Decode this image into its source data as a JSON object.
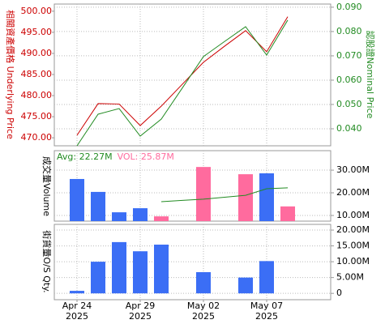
{
  "chart_data": [
    {
      "type": "line",
      "ylabel": "相關資產價格 Underlying Price",
      "y2label": "認股證Nominal Price",
      "ylim": [
        468.1,
        501.7
      ],
      "yticks": [
        {
          "value": 470,
          "label": "470.00"
        },
        {
          "value": 475,
          "label": "475.00"
        },
        {
          "value": 480,
          "label": "480.00"
        },
        {
          "value": 485,
          "label": "485.00"
        },
        {
          "value": 490,
          "label": "490.00"
        },
        {
          "value": 495,
          "label": "495.00"
        },
        {
          "value": 500,
          "label": "500.00"
        }
      ],
      "y2lim": [
        0.033,
        0.0913
      ],
      "y2ticks": [
        {
          "value": 0.04,
          "label": "0.040"
        },
        {
          "value": 0.05,
          "label": "0.050"
        },
        {
          "value": 0.06,
          "label": "0.060"
        },
        {
          "value": 0.07,
          "label": "0.070"
        },
        {
          "value": 0.08,
          "label": "0.080"
        },
        {
          "value": 0.09,
          "label": "0.090"
        }
      ],
      "grid": true,
      "series": [
        {
          "name": "Underlying Price",
          "color": "#cc0000",
          "values": [
            470.6,
            478.1,
            478.0,
            472.9,
            477.5,
            482.7,
            487.9,
            491.7,
            495.4,
            490.4,
            498.7
          ]
        },
        {
          "name": "Nominal Price",
          "color": "#228b22",
          "axis": "y2",
          "values": [
            0.033,
            0.046,
            0.0483,
            0.037,
            0.044,
            0.0568,
            0.0697,
            0.0759,
            0.082,
            0.0703,
            0.0847
          ]
        }
      ]
    },
    {
      "type": "bar",
      "ylabel": "成交量Volume",
      "annotations": [
        {
          "text": "Avg: 22.27M",
          "color": "#228b22"
        },
        {
          "text": "VOL: 25.87M",
          "color": "#ff6b9e"
        }
      ],
      "ylim": [
        7500000,
        38600000
      ],
      "y2ticks": [
        {
          "value": 10000000,
          "label": "10.00M"
        },
        {
          "value": 20000000,
          "label": "20.00M"
        },
        {
          "value": 30000000,
          "label": "30.00M"
        }
      ],
      "grid": true,
      "values": [
        26100000,
        20400000,
        11400000,
        13200000,
        9600000,
        null,
        31400000,
        null,
        28200000,
        28600000,
        14000000
      ],
      "colors": [
        "#3b6ef5",
        "#3b6ef5",
        "#3b6ef5",
        "#3b6ef5",
        "#ff6b9e",
        null,
        "#ff6b9e",
        null,
        "#ff6b9e",
        "#3b6ef5",
        "#ff6b9e"
      ],
      "average": {
        "color": "#228b22",
        "values": [
          null,
          null,
          null,
          null,
          16100000,
          16650000,
          17200000,
          18050000,
          18900000,
          21800000,
          22200000
        ]
      }
    },
    {
      "type": "bar",
      "ylabel": "街貨量O/S Qty.",
      "ylim": [
        -2000000,
        21800000
      ],
      "y2ticks": [
        0,
        {
          "value": 5000000,
          "label": "5.00M"
        },
        {
          "value": 10000000,
          "label": "10.00M"
        },
        {
          "value": 15000000,
          "label": "15.00M"
        },
        {
          "value": 20000000,
          "label": "20.00M"
        }
      ],
      "grid": true,
      "color": "#3b6ef5",
      "values": [
        800000,
        10000000,
        16200000,
        13300000,
        15400000,
        null,
        6700000,
        null,
        5000000,
        10200000,
        null
      ],
      "categories": [
        "Apr 24\n2025",
        null,
        null,
        "Apr 29\n2025",
        null,
        null,
        "May 02\n2025",
        null,
        null,
        "May 07\n2025",
        null
      ]
    }
  ]
}
